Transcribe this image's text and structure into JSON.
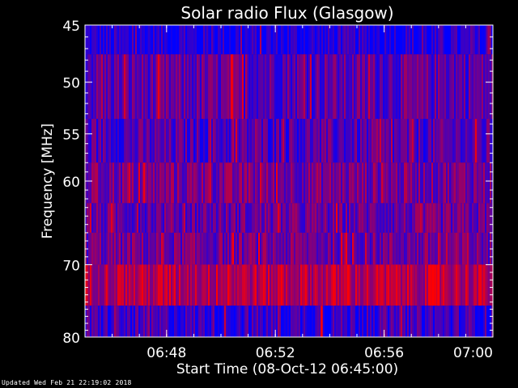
{
  "chart_data": {
    "type": "heatmap",
    "title": "Solar radio Flux (Glasgow)",
    "xlabel": "Start Time (08-Oct-12 06:45:00)",
    "ylabel": "Frequency [MHz]",
    "xlim_minutes": [
      0,
      15
    ],
    "x_ticks": [
      {
        "label": "06:48",
        "minutes": 3
      },
      {
        "label": "06:52",
        "minutes": 7
      },
      {
        "label": "06:56",
        "minutes": 11
      },
      {
        "label": "07:00",
        "minutes": 15
      }
    ],
    "ylim": [
      45,
      80
    ],
    "y_scale": "log",
    "y_ticks": [
      45,
      50,
      55,
      60,
      70,
      80
    ],
    "colormap": [
      "#0000ff",
      "#ff0000"
    ],
    "bands": [
      {
        "f_start": 45,
        "f_end": 47.5,
        "intensity": 0.1
      },
      {
        "f_start": 47.5,
        "f_end": 53.5,
        "intensity": 0.35
      },
      {
        "f_start": 53.5,
        "f_end": 58,
        "intensity": 0.3
      },
      {
        "f_start": 58,
        "f_end": 62.5,
        "intensity": 0.45
      },
      {
        "f_start": 62.5,
        "f_end": 66,
        "intensity": 0.38
      },
      {
        "f_start": 66,
        "f_end": 70,
        "intensity": 0.42
      },
      {
        "f_start": 70,
        "f_end": 75.5,
        "intensity": 0.7
      },
      {
        "f_start": 75.5,
        "f_end": 80,
        "intensity": 0.22
      }
    ],
    "events": [
      {
        "time": "06:50:24",
        "f_start": 47.5,
        "f_end": 53.5,
        "intensity": 0.95
      },
      {
        "time": "06:53:42",
        "f_start": 75.5,
        "f_end": 80,
        "intensity": 0.95
      },
      {
        "time": "06:57:48",
        "f_start": 70,
        "f_end": 75.5,
        "intensity": 1.0
      },
      {
        "time": "06:58:00",
        "f_start": 70,
        "f_end": 75.5,
        "intensity": 1.0
      }
    ]
  },
  "footer": "Updated Wed Feb 21 22:19:02 2018"
}
